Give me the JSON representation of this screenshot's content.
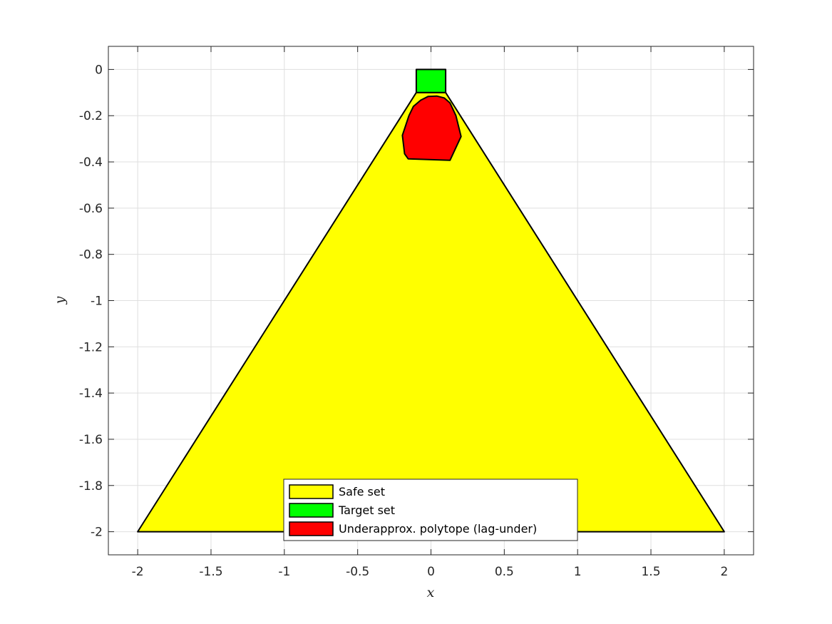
{
  "chart_data": {
    "type": "area",
    "title": "",
    "xlabel": "x",
    "ylabel": "y",
    "xlim": [
      -2.2,
      2.2
    ],
    "ylim": [
      -2.1,
      0.1
    ],
    "xticks": [
      -2,
      -1.5,
      -1,
      -0.5,
      0,
      0.5,
      1,
      1.5,
      2
    ],
    "xtick_labels": [
      "-2",
      "-1.5",
      "-1",
      "-0.5",
      "0",
      "0.5",
      "1",
      "1.5",
      "2"
    ],
    "yticks": [
      0,
      -0.2,
      -0.4,
      -0.6,
      -0.8,
      -1,
      -1.2,
      -1.4,
      -1.6,
      -1.8,
      -2
    ],
    "ytick_labels": [
      "0",
      "-0.2",
      "-0.4",
      "-0.6",
      "-0.8",
      "-1",
      "-1.2",
      "-1.4",
      "-1.6",
      "-1.8",
      "-2"
    ],
    "grid": true,
    "box": true,
    "legend_position": "bottom-center",
    "series": [
      {
        "name": "Safe set",
        "color": "#ffff00",
        "vertices": [
          [
            -2,
            -2
          ],
          [
            2,
            -2
          ],
          [
            0.1,
            -0.1
          ],
          [
            -0.1,
            -0.1
          ]
        ]
      },
      {
        "name": "Target set",
        "color": "#00ff00",
        "vertices": [
          [
            -0.1,
            -0.1
          ],
          [
            0.1,
            -0.1
          ],
          [
            0.1,
            0
          ],
          [
            -0.1,
            0
          ]
        ]
      },
      {
        "name": "Underapprox. polytope (lag-under)",
        "color": "#ff0000",
        "vertices": [
          [
            -0.18,
            -0.365
          ],
          [
            -0.155,
            -0.387
          ],
          [
            0.13,
            -0.393
          ],
          [
            0.205,
            -0.29
          ],
          [
            0.17,
            -0.2
          ],
          [
            0.13,
            -0.145
          ],
          [
            0.09,
            -0.123
          ],
          [
            0.04,
            -0.115
          ],
          [
            -0.02,
            -0.117
          ],
          [
            -0.07,
            -0.133
          ],
          [
            -0.12,
            -0.16
          ],
          [
            -0.15,
            -0.2
          ],
          [
            -0.195,
            -0.285
          ]
        ]
      }
    ]
  }
}
